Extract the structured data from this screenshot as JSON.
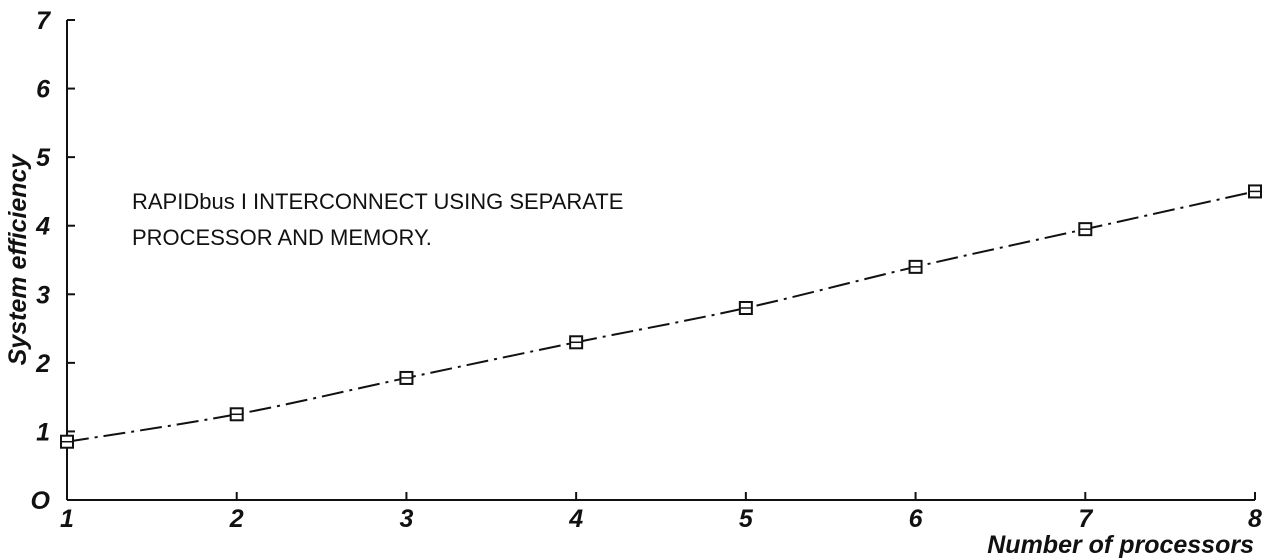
{
  "chart_data": {
    "type": "line",
    "title": "",
    "xlabel": "Number of processors",
    "ylabel": "System efficiency",
    "xlim": [
      1,
      8
    ],
    "ylim": [
      0,
      7
    ],
    "x_ticks": [
      "1",
      "2",
      "3",
      "4",
      "5",
      "6",
      "7",
      "8"
    ],
    "y_ticks": [
      "O",
      "1",
      "2",
      "3",
      "4",
      "5",
      "6",
      "7"
    ],
    "grid": false,
    "series": [
      {
        "marker": "square",
        "line_style": "dash-dot",
        "color": "#111111",
        "x": [
          1,
          2,
          3,
          4,
          5,
          6,
          7,
          8
        ],
        "y": [
          0.85,
          1.25,
          1.78,
          2.3,
          2.8,
          3.4,
          3.95,
          4.5
        ]
      }
    ],
    "annotation_lines": [
      "RAPIDbus I INTERCONNECT USING SEPARATE",
      "PROCESSOR AND MEMORY."
    ]
  }
}
